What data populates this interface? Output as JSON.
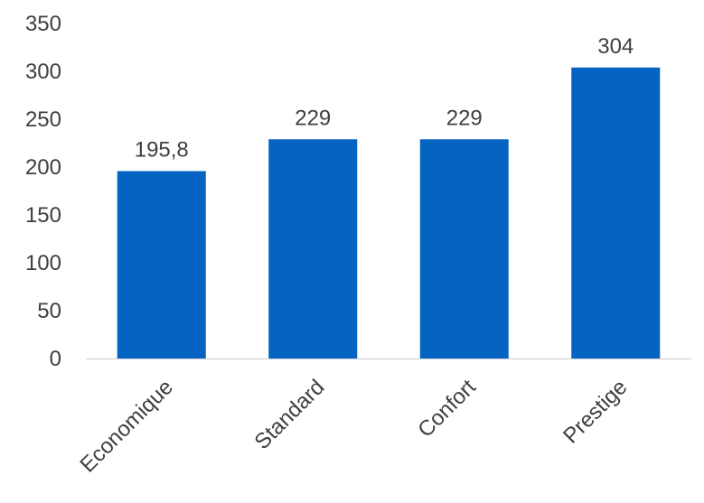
{
  "chart_data": {
    "type": "bar",
    "categories": [
      "Economique",
      "Standard",
      "Confort",
      "Prestige"
    ],
    "values": [
      195.8,
      229,
      229,
      304
    ],
    "value_labels": [
      "195,8",
      "229",
      "229",
      "304"
    ],
    "ylim": [
      0,
      350
    ],
    "yticks": [
      0,
      50,
      100,
      150,
      200,
      250,
      300,
      350
    ],
    "ytick_labels": [
      "0",
      "50",
      "100",
      "150",
      "200",
      "250",
      "300",
      "350"
    ],
    "grid": false,
    "legend": "none",
    "bar_color": "#0563C1",
    "axis_color": "#D9D9D9",
    "text_color": "#404040"
  }
}
